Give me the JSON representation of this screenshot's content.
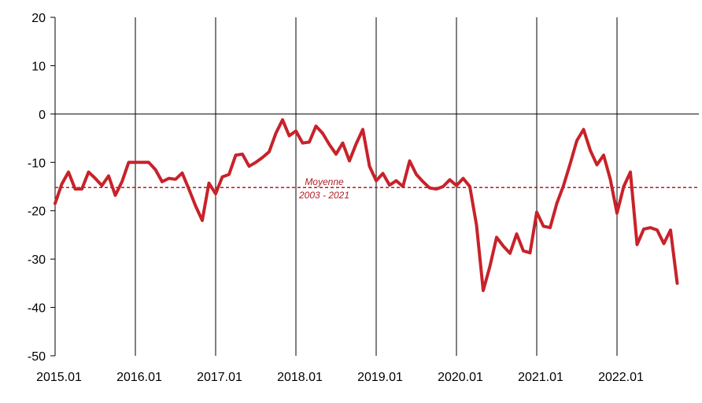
{
  "chart_data": {
    "type": "line",
    "title": "",
    "xlabel": "",
    "ylabel": "",
    "ylim": [
      -50,
      20
    ],
    "y_ticks": [
      20,
      10,
      0,
      -10,
      -20,
      -30,
      -40,
      -50
    ],
    "x_start": "2015.01",
    "x_tick_labels": [
      "2015.01",
      "2016.01",
      "2017.01",
      "2018.01",
      "2019.01",
      "2020.01",
      "2021.01",
      "2022.01"
    ],
    "vertical_grid": true,
    "horizontal_grid": false,
    "zero_line": true,
    "series": [
      {
        "color": "#c8222a",
        "values": [
          -18.5,
          -14.5,
          -12,
          -15.5,
          -15.5,
          -12,
          -13.3,
          -14.8,
          -12.8,
          -16.8,
          -14,
          -10,
          -10,
          -10,
          -10,
          -11.5,
          -14,
          -13.3,
          -13.5,
          -12.2,
          -15.5,
          -19,
          -22,
          -14.3,
          -16.5,
          -13,
          -12.5,
          -8.5,
          -8.3,
          -10.8,
          -10,
          -9,
          -7.8,
          -4,
          -1.2,
          -4.5,
          -3.5,
          -6,
          -5.8,
          -2.5,
          -4,
          -6.3,
          -8.3,
          -6,
          -9.7,
          -6.2,
          -3.2,
          -10.8,
          -13.8,
          -12.3,
          -14.7,
          -13.8,
          -15,
          -9.7,
          -12.5,
          -14,
          -15.3,
          -15.5,
          -15,
          -13.6,
          -14.8,
          -13.3,
          -15,
          -23,
          -36.5,
          -31.5,
          -25.5,
          -27.3,
          -28.8,
          -24.8,
          -28.3,
          -28.7,
          -20.3,
          -23.2,
          -23.5,
          -18.5,
          -14.8,
          -10.3,
          -5.5,
          -3.2,
          -7.5,
          -10.5,
          -8.5,
          -13.5,
          -20.5,
          -15,
          -12,
          -27,
          -23.8,
          -23.5,
          -24,
          -26.8,
          -24,
          -35
        ]
      }
    ],
    "average_line": {
      "value": -15.2,
      "color": "#b01e24",
      "label_line1": "Moyenne",
      "label_line2": "2003 - 2021"
    }
  }
}
